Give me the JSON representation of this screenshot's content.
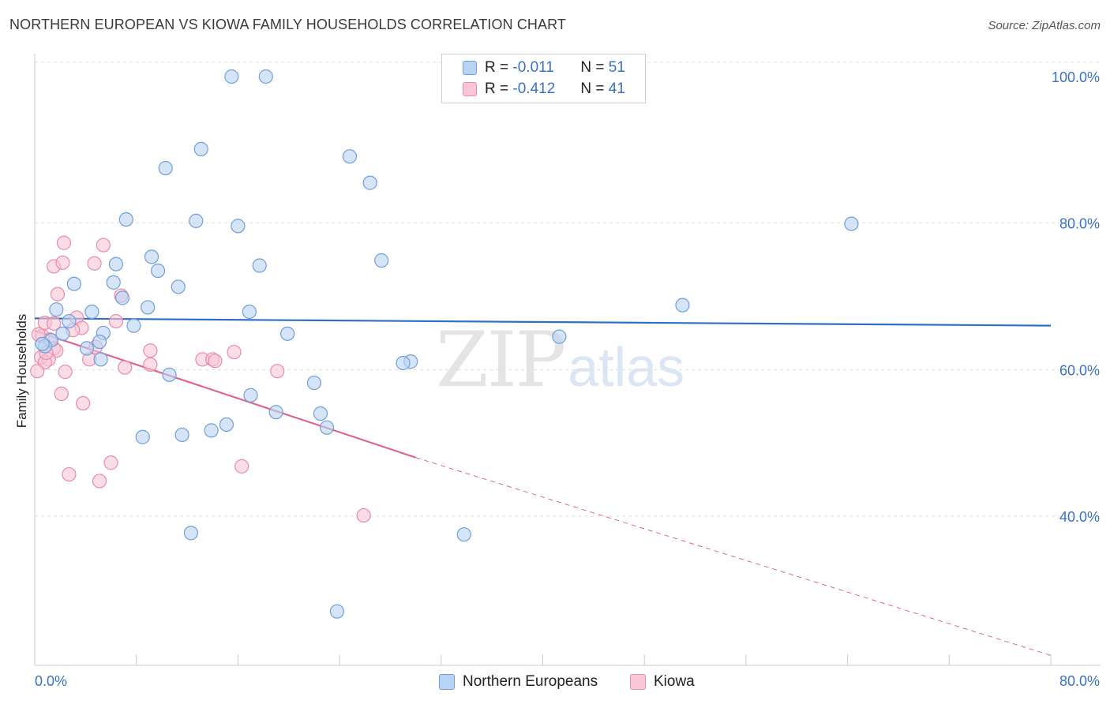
{
  "header": {
    "title": "NORTHERN EUROPEAN VS KIOWA FAMILY HOUSEHOLDS CORRELATION CHART",
    "source": "Source: ZipAtlas.com"
  },
  "watermark": {
    "zip": "ZIP",
    "atlas": "atlas"
  },
  "legend": {
    "rows": [
      {
        "r_label": "R =",
        "r_value": "-0.011",
        "n_label": "N =",
        "n_value": "51"
      },
      {
        "r_label": "R =",
        "r_value": "-0.412",
        "n_label": "N =",
        "n_value": "41"
      }
    ]
  },
  "colors": {
    "blue_fill": "#b9d3f2",
    "blue_stroke": "#6f9fd8",
    "blue_line": "#2f6fc8",
    "pink_fill": "#f8c6d6",
    "pink_stroke": "#e98aab",
    "pink_line": "#e0648f",
    "tick_text": "#3a72c4",
    "grid": "#dddddd"
  },
  "chart_data": {
    "type": "scatter",
    "title": "NORTHERN EUROPEAN VS KIOWA FAMILY HOUSEHOLDS CORRELATION CHART",
    "xlabel": "",
    "ylabel": "Family Households",
    "xlim": [
      0,
      80
    ],
    "ylim": [
      20,
      102
    ],
    "x_tick_labels": [
      "0.0%",
      "80.0%"
    ],
    "y_ticks": [
      40,
      60,
      80,
      100
    ],
    "y_tick_labels": [
      "40.0%",
      "60.0%",
      "80.0%",
      "100.0%"
    ],
    "grid": true,
    "legend_position": "top-center",
    "series": [
      {
        "name": "Northern Europeans",
        "r": -0.011,
        "n": 51,
        "trend": {
          "x0": 0,
          "y0": 67.0,
          "x1": 80,
          "y1": 66.0
        },
        "points": [
          [
            15.5,
            100.0
          ],
          [
            18.2,
            100.0
          ],
          [
            13.1,
            90.1
          ],
          [
            10.3,
            87.5
          ],
          [
            24.8,
            89.1
          ],
          [
            26.4,
            85.5
          ],
          [
            7.2,
            80.5
          ],
          [
            12.7,
            80.3
          ],
          [
            16.0,
            79.6
          ],
          [
            64.3,
            79.9
          ],
          [
            9.2,
            75.4
          ],
          [
            27.3,
            74.9
          ],
          [
            6.4,
            74.4
          ],
          [
            17.7,
            74.2
          ],
          [
            9.7,
            73.5
          ],
          [
            6.2,
            71.9
          ],
          [
            3.1,
            71.7
          ],
          [
            11.3,
            71.3
          ],
          [
            6.9,
            69.8
          ],
          [
            51.0,
            68.8
          ],
          [
            8.9,
            68.5
          ],
          [
            1.7,
            68.2
          ],
          [
            4.5,
            67.9
          ],
          [
            16.9,
            67.9
          ],
          [
            7.8,
            66.0
          ],
          [
            2.7,
            66.6
          ],
          [
            2.2,
            64.9
          ],
          [
            5.4,
            65.0
          ],
          [
            19.9,
            64.9
          ],
          [
            41.3,
            64.5
          ],
          [
            1.3,
            64.0
          ],
          [
            5.1,
            63.8
          ],
          [
            0.8,
            63.2
          ],
          [
            4.1,
            62.9
          ],
          [
            5.2,
            61.4
          ],
          [
            29.6,
            61.1
          ],
          [
            29.0,
            60.9
          ],
          [
            10.6,
            59.3
          ],
          [
            22.0,
            58.2
          ],
          [
            17.0,
            56.5
          ],
          [
            19.0,
            54.2
          ],
          [
            22.5,
            54.0
          ],
          [
            15.1,
            52.5
          ],
          [
            13.9,
            51.7
          ],
          [
            23.0,
            52.1
          ],
          [
            11.6,
            51.1
          ],
          [
            8.5,
            50.8
          ],
          [
            12.3,
            37.7
          ],
          [
            33.8,
            37.5
          ],
          [
            23.8,
            27.0
          ],
          [
            0.6,
            63.5
          ]
        ]
      },
      {
        "name": "Kiowa",
        "r": -0.412,
        "n": 41,
        "trend": {
          "x0": 0,
          "y0": 65.3,
          "x1": 30,
          "y1": 48.0,
          "dash_x1": 80,
          "dash_y1": 21.0
        },
        "points": [
          [
            2.3,
            77.3
          ],
          [
            5.4,
            77.0
          ],
          [
            1.5,
            74.1
          ],
          [
            2.2,
            74.6
          ],
          [
            4.7,
            74.5
          ],
          [
            1.8,
            70.3
          ],
          [
            6.8,
            70.1
          ],
          [
            3.3,
            67.1
          ],
          [
            6.4,
            66.6
          ],
          [
            0.8,
            66.4
          ],
          [
            1.5,
            66.3
          ],
          [
            3.7,
            65.7
          ],
          [
            3.0,
            65.4
          ],
          [
            0.6,
            64.6
          ],
          [
            1.2,
            64.1
          ],
          [
            4.8,
            63.1
          ],
          [
            1.5,
            62.9
          ],
          [
            1.7,
            62.6
          ],
          [
            9.1,
            62.6
          ],
          [
            15.7,
            62.4
          ],
          [
            0.5,
            61.7
          ],
          [
            1.1,
            61.4
          ],
          [
            0.8,
            61.0
          ],
          [
            4.3,
            61.4
          ],
          [
            13.2,
            61.4
          ],
          [
            14.0,
            61.4
          ],
          [
            14.2,
            61.2
          ],
          [
            9.1,
            60.7
          ],
          [
            7.1,
            60.3
          ],
          [
            0.2,
            59.8
          ],
          [
            2.4,
            59.7
          ],
          [
            19.1,
            59.8
          ],
          [
            2.1,
            56.7
          ],
          [
            3.8,
            55.4
          ],
          [
            6.0,
            47.3
          ],
          [
            16.3,
            46.8
          ],
          [
            2.7,
            45.7
          ],
          [
            5.1,
            44.8
          ],
          [
            25.9,
            40.1
          ],
          [
            0.3,
            64.8
          ],
          [
            0.9,
            62.3
          ]
        ]
      }
    ]
  }
}
